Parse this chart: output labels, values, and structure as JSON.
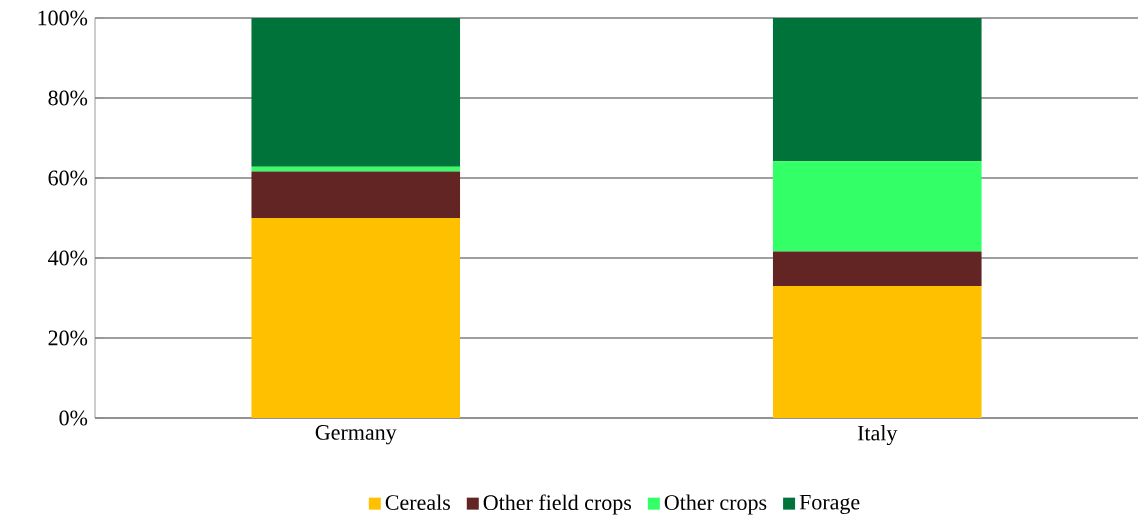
{
  "chart_data": {
    "type": "bar",
    "stacked": true,
    "categories": [
      "Germany",
      "Italy"
    ],
    "series": [
      {
        "name": "Cereals",
        "color": "#ffc000",
        "values": [
          50,
          33
        ]
      },
      {
        "name": "Other field crops",
        "color": "#632523",
        "values": [
          11.6,
          8.6
        ]
      },
      {
        "name": "Other crops",
        "color": "#33ff66",
        "values": [
          1.2,
          22.6
        ]
      },
      {
        "name": "Forage",
        "color": "#00733a",
        "values": [
          37.2,
          35.8
        ]
      }
    ],
    "ylim": [
      0,
      100
    ],
    "yticks": [
      {
        "value": 0,
        "label": "0%"
      },
      {
        "value": 20,
        "label": "20%"
      },
      {
        "value": 40,
        "label": "40%"
      },
      {
        "value": 60,
        "label": "60%"
      },
      {
        "value": 80,
        "label": "80%"
      },
      {
        "value": 100,
        "label": "100%"
      }
    ],
    "grid": "y",
    "legend": "bottom"
  }
}
